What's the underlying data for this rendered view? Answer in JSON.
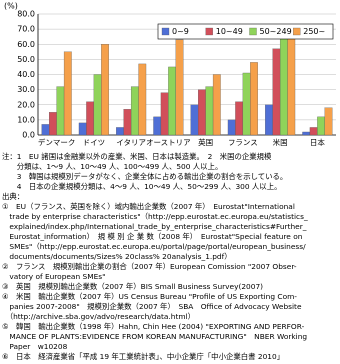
{
  "chart_data": {
    "type": "bar",
    "y_label": "(%)",
    "categories": [
      "デンマーク",
      "ドイツ",
      "イタリア",
      "オーストリア",
      "英国",
      "フランス",
      "米国",
      "日本"
    ],
    "series": [
      {
        "name": "0~9",
        "color": "#4f6fd6",
        "values": [
          7,
          8,
          5,
          12,
          20,
          10,
          20,
          2
        ]
      },
      {
        "name": "10~49",
        "color": "#d14f5a",
        "values": [
          15,
          22,
          17,
          28,
          30,
          22,
          57,
          5
        ]
      },
      {
        "name": "50~249",
        "color": "#8fd35a",
        "values": [
          32,
          40,
          32,
          45,
          32,
          41,
          69,
          12
        ]
      },
      {
        "name": "250~",
        "color": "#f5a04a",
        "values": [
          55,
          60,
          47,
          63,
          40,
          48,
          71,
          18
        ]
      }
    ],
    "ylim": [
      0,
      80
    ],
    "yticks": [
      {
        "value": 0,
        "label": "0.0"
      },
      {
        "value": 10,
        "label": "10.0"
      },
      {
        "value": 20,
        "label": "20.0"
      },
      {
        "value": 30,
        "label": "30.0"
      },
      {
        "value": 40,
        "label": "40.0"
      },
      {
        "value": 50,
        "label": "50.0"
      },
      {
        "value": 60,
        "label": "60.0"
      },
      {
        "value": 70,
        "label": "70.0"
      },
      {
        "value": 80,
        "label": "80.0"
      }
    ],
    "grid": true,
    "legend": "top-right"
  },
  "notes": [
    "注：1　EU 諸国は金融業以外の産業、米国、日本は製造業。　2　米国の企業規模",
    "　　分類は、1～9 人、10～49 人、100～499 人、500 人以上。",
    "　　3　韓国は規模別データがなく、企業全体に占める輸出企業の割合を示している。",
    "　　4　日本の企業規模分類は、4～9 人、10～49 人、50～299 人、300 人以上。",
    "出典：",
    "①　EU（フランス、英国を除く）域内輸出企業数（2007 年）　Eurostat\"International",
    "　trade by enterprise characteristics\"（http://epp.eurostat.ec.europa.eu/statistics_",
    "　explained/index.php/International_trade_by_enterprise_characteristics#Further_",
    "　Eurostat_information）　規 模 別 企 業 数（2008 年）　Eurostat\"Special feature on",
    "　SMEs\"（http://epp.eurostat.ec.europa.eu/portal/page/portal/european_business/",
    "　documents/documents/Sizes% 20class% 20analysis_1.pdf）",
    "②　フランス　規模別輸出企業の割合（2007 年）European Comission \"2007 Obser-",
    "　vatory of European SMEs\"",
    "③　英国　規模別輸出企業数（2007 年）BIS Small Business Survey(2007)",
    "④　米国　輸出企業数（2007 年）US Census Bureau \"Profile of US Exporting Com-",
    "　panies 2007-2008\"　規模別企業数（2007 年）　SBA　Office of Advocacy Website",
    "　（http://archive.sba.gov/advo/research/data.html）",
    "⑤　韓国　輸出企業数（1998 年）Hahn, Chin Hee (2004) \"EXPORTING AND PERFOR-",
    "　MANCE OF PLANTS:EVIDENCE FROM KOREAN MANUFACTURING\"　NBER Working",
    "　Paper　w10208",
    "⑥　日本　経済産業省「平成 19 年工業統計表」、中小企業庁「中小企業白書 2010」"
  ]
}
